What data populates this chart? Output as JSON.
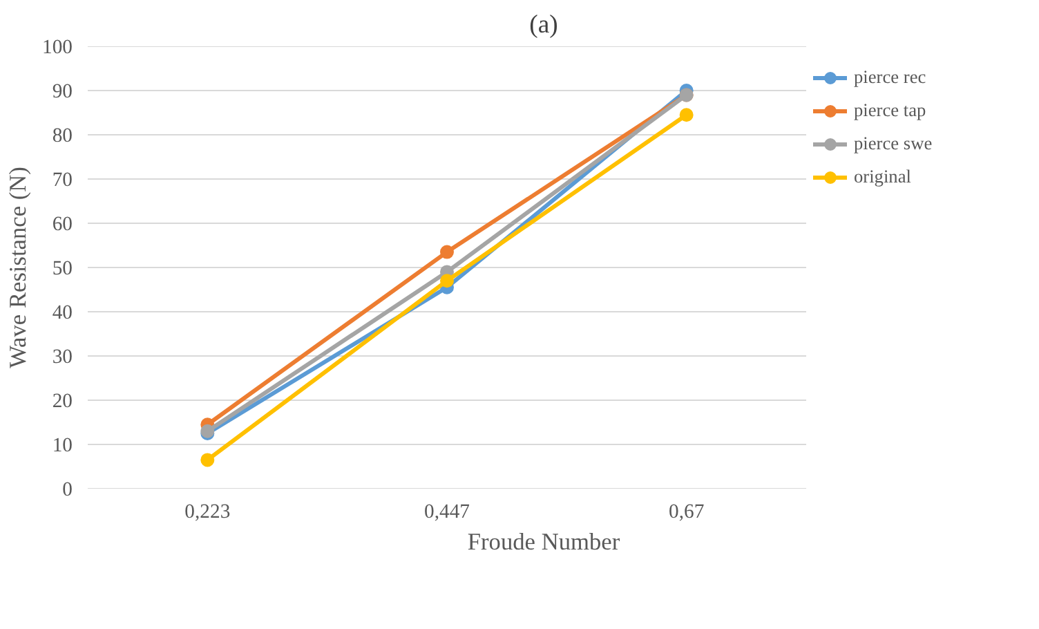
{
  "chart_data": {
    "type": "line",
    "title": "(a)",
    "xlabel": "Froude Number",
    "ylabel": "Wave Resistance (N)",
    "categories": [
      "0,223",
      "0,447",
      "0,67"
    ],
    "series": [
      {
        "name": "pierce rec",
        "color": "#5b9bd5",
        "values": [
          12.5,
          45.5,
          90
        ]
      },
      {
        "name": "pierce tap",
        "color": "#ed7d31",
        "values": [
          14.5,
          53.5,
          89
        ]
      },
      {
        "name": "pierce swe",
        "color": "#a5a5a5",
        "values": [
          13,
          49,
          89
        ]
      },
      {
        "name": "original",
        "color": "#ffc000",
        "values": [
          6.5,
          47,
          84.5
        ]
      }
    ],
    "ylim": [
      0,
      100
    ],
    "yticks": [
      0,
      10,
      20,
      30,
      40,
      50,
      60,
      70,
      80,
      90,
      100
    ],
    "grid": "y",
    "legend": "right",
    "marker": "circle",
    "line_style": "solid"
  }
}
